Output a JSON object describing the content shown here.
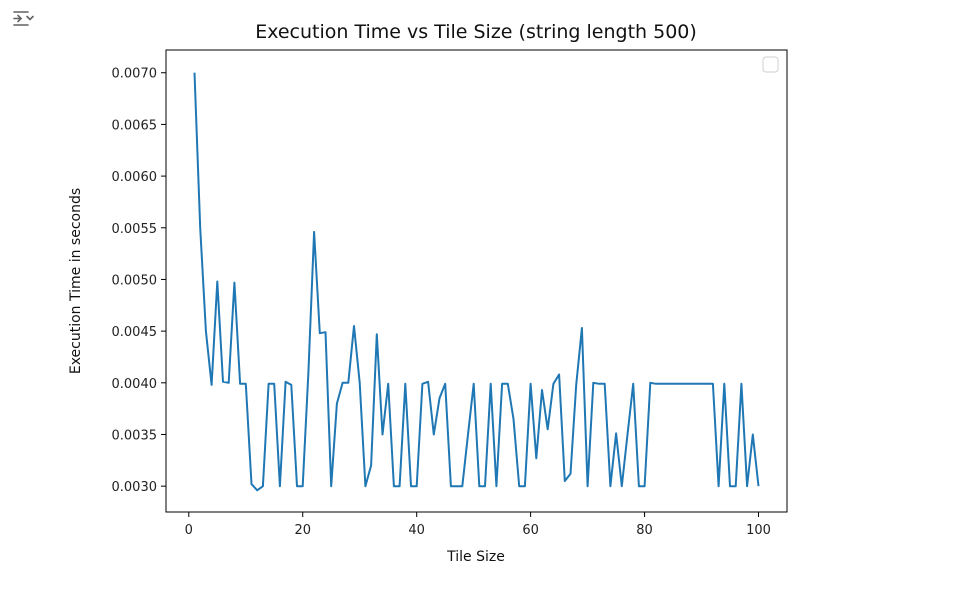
{
  "output_toggle": {
    "icon": "output-collapse-icon"
  },
  "chart_data": {
    "type": "line",
    "title": "Execution Time vs Tile Size (string length 500)",
    "xlabel": "Tile Size",
    "ylabel": "Execution Time in seconds",
    "xlim": [
      -4,
      105
    ],
    "ylim": [
      0.00275,
      0.00722
    ],
    "x_ticks": [
      0,
      20,
      40,
      60,
      80,
      100
    ],
    "y_ticks": [
      0.003,
      0.0035,
      0.004,
      0.0045,
      0.005,
      0.0055,
      0.006,
      0.0065,
      0.007
    ],
    "x_tick_labels": [
      "0",
      "20",
      "40",
      "60",
      "80",
      "100"
    ],
    "y_tick_labels": [
      "0.0030",
      "0.0035",
      "0.0040",
      "0.0045",
      "0.0050",
      "0.0055",
      "0.0060",
      "0.0065",
      "0.0070"
    ],
    "legend": {
      "placement": "top-right",
      "entries": []
    },
    "grid": false,
    "series": [
      {
        "color": "#1f77b4",
        "x": [
          1,
          2,
          3,
          4,
          5,
          6,
          7,
          8,
          9,
          10,
          11,
          12,
          13,
          14,
          15,
          16,
          17,
          18,
          19,
          20,
          21,
          22,
          23,
          24,
          25,
          26,
          27,
          28,
          29,
          30,
          31,
          32,
          33,
          34,
          35,
          36,
          37,
          38,
          39,
          40,
          41,
          42,
          43,
          44,
          45,
          46,
          47,
          48,
          49,
          50,
          51,
          52,
          53,
          54,
          55,
          56,
          57,
          58,
          59,
          60,
          61,
          62,
          63,
          64,
          65,
          66,
          67,
          68,
          69,
          70,
          71,
          72,
          73,
          74,
          75,
          76,
          77,
          78,
          79,
          80,
          81,
          82,
          83,
          84,
          85,
          86,
          87,
          88,
          89,
          90,
          91,
          92,
          93,
          94,
          95,
          96,
          97,
          98,
          99,
          100
        ],
        "y": [
          0.007,
          0.0055,
          0.0045,
          0.00398,
          0.00498,
          0.00401,
          0.004,
          0.00497,
          0.00399,
          0.00399,
          0.00302,
          0.00296,
          0.003,
          0.00399,
          0.00399,
          0.003,
          0.00401,
          0.00398,
          0.003,
          0.003,
          0.0041,
          0.00546,
          0.00448,
          0.00449,
          0.003,
          0.0038,
          0.004,
          0.004,
          0.00455,
          0.004,
          0.003,
          0.0032,
          0.00447,
          0.0035,
          0.00399,
          0.003,
          0.003,
          0.00399,
          0.003,
          0.003,
          0.00399,
          0.00401,
          0.0035,
          0.00385,
          0.00399,
          0.003,
          0.003,
          0.003,
          0.0035,
          0.00399,
          0.003,
          0.003,
          0.00399,
          0.003,
          0.00399,
          0.00399,
          0.00365,
          0.003,
          0.003,
          0.00399,
          0.00327,
          0.00393,
          0.00355,
          0.00399,
          0.00408,
          0.00305,
          0.00312,
          0.00398,
          0.00453,
          0.003,
          0.004,
          0.00399,
          0.00399,
          0.003,
          0.00351,
          0.003,
          0.0035,
          0.00399,
          0.003,
          0.003,
          0.004,
          0.00399,
          0.00399,
          0.00399,
          0.00399,
          0.00399,
          0.00399,
          0.00399,
          0.00399,
          0.00399,
          0.00399,
          0.00399,
          0.003,
          0.00399,
          0.003,
          0.003,
          0.00399,
          0.003,
          0.0035,
          0.003
        ]
      }
    ]
  }
}
